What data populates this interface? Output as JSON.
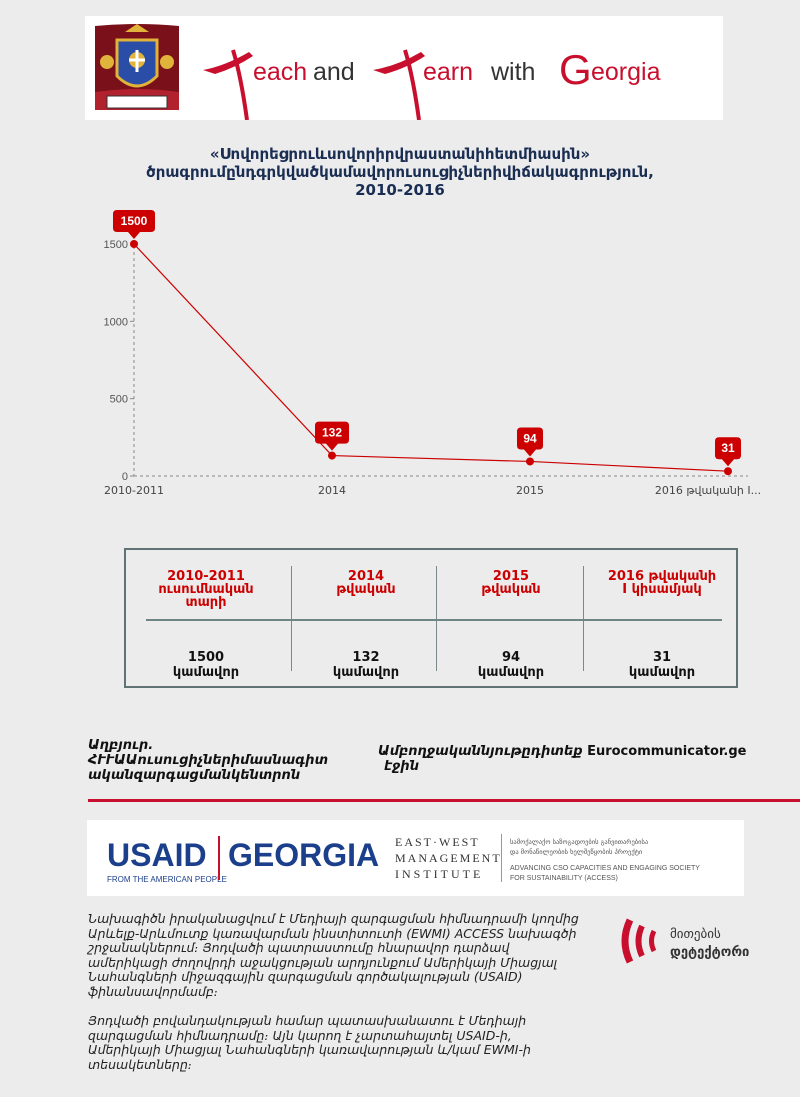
{
  "banner": {
    "text_each": "each",
    "text_and": "and",
    "text_earn": "earn",
    "text_with": "with",
    "text_g": "G",
    "text_eorgia": "eorgia",
    "colors": {
      "red": "#c8102e",
      "dark": "#333333"
    }
  },
  "title": {
    "line1": "«Սովորեցրուևսովորիրվրաստանիհետմիասին»",
    "line2": "ծրագրումընդգրկվածկամավորուսուցիչներիվիճակագրություն,",
    "line3": "2010-2016"
  },
  "chart_data": {
    "type": "line",
    "categories": [
      "2010-2011",
      "2014",
      "2015",
      "2016 թվականի I..."
    ],
    "values": [
      1500,
      132,
      94,
      31
    ],
    "data_labels": [
      "1500",
      "132",
      "94",
      "31"
    ],
    "yticks": [
      0,
      500,
      1000,
      1500
    ],
    "ytick_labels": [
      "0",
      "500",
      "1000",
      "1500"
    ],
    "ylim": [
      0,
      1500
    ],
    "color": "#cc0000",
    "title": "",
    "xlabel": "",
    "ylabel": ""
  },
  "table": {
    "headers": [
      "2010-2011\nուսումնական\nտարի",
      "2014\nթվական",
      "2015\nթվական",
      "2016 թվականի\nI կիսամյակ"
    ],
    "values": [
      "1500\nկամավոր",
      "132\nկամավոր",
      "94\nկամավոր",
      "31\nկամավոր"
    ]
  },
  "source": {
    "left": "Աղբյուր.\nՀՒՒԱԱուսուցիչներիմասնագիտ\nականզարգացմանկենտրոն",
    "right_prefix": "Ամբողջականնյութըդիտեք ",
    "right_site": "Eurocommunicator.ge",
    "right_suffix": "էջին"
  },
  "usaid": {
    "usaid": "USAID",
    "georgia": "GEORGIA",
    "tagline": "FROM THE AMERICAN PEOPLE",
    "ewmi_1": "EAST·WEST",
    "ewmi_2": "MANAGEMENT",
    "ewmi_3": "INSTITUTE",
    "access_geo_1": "სამოქალაქო საზოგადოების განვითარებისა",
    "access_geo_2": "და მონაწილეობის ხელშეწყობის პროექტი",
    "access_en_1": "ADVANCING CSO CAPACITIES AND ENGAGING SOCIETY",
    "access_en_2": "FOR SUSTAINABILITY (ACCESS)"
  },
  "disclaimer": {
    "p1": "Նախագիծն իրականացվում է Մեդիայի զարգացման հիմնադրամի կողմից Արևելք-Արևմուտք կառավարման ինստիտուտի (EWMI) ACCESS նախագծի շրջանակներում։ Յոդվածի պատրաստումը հնարավոր դարձավ ամերիկացի ժողովրդի աջակցության արդյունքում Ամերիկայի Միացյալ Նահանգների միջազգային զարգացման գործակալության (USAID) ֆինանսավորմամբ։",
    "p2": "Յոդվածի բովանդակության համար պատասխանատու է Մեդիայի զարգացման հիմնադրամը։ Այն կարող է չարտահայտել USAID-ի, Ամերիկայի Միացյալ Նահանգների կառավարության և/կամ EWMI-ի տեսակետները։"
  },
  "myth": {
    "line1": "მითების",
    "line2": "დეტექტორი"
  }
}
